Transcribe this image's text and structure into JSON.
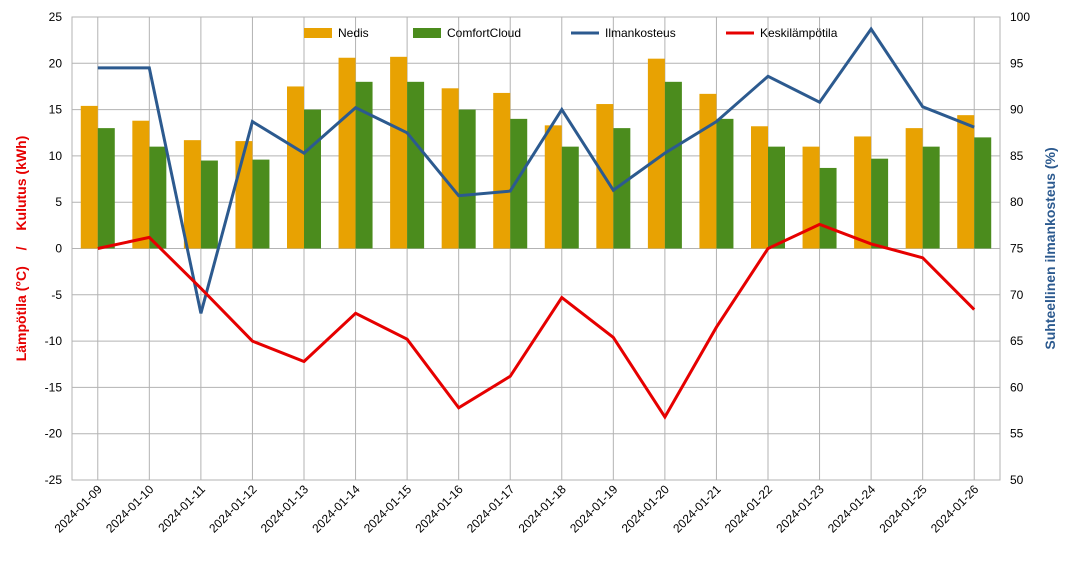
{
  "chart_data": {
    "type": "bar",
    "categories": [
      "2024-01-09",
      "2024-01-10",
      "2024-01-11",
      "2024-01-12",
      "2024-01-13",
      "2024-01-14",
      "2024-01-15",
      "2024-01-16",
      "2024-01-17",
      "2024-01-18",
      "2024-01-19",
      "2024-01-20",
      "2024-01-21",
      "2024-01-22",
      "2024-01-23",
      "2024-01-24",
      "2024-01-25",
      "2024-01-26"
    ],
    "series": [
      {
        "name": "Nedis",
        "type": "bar",
        "axis": "left",
        "color": "#e8a202",
        "values": [
          15.4,
          13.8,
          11.7,
          11.6,
          17.5,
          20.6,
          20.7,
          17.3,
          16.8,
          13.3,
          15.6,
          20.5,
          16.7,
          13.2,
          11.0,
          12.1,
          13.0,
          14.4
        ]
      },
      {
        "name": "ComfortCloud",
        "type": "bar",
        "axis": "left",
        "color": "#4b8c1d",
        "values": [
          13.0,
          11.0,
          9.5,
          9.6,
          15.0,
          18.0,
          18.0,
          15.0,
          14.0,
          11.0,
          13.0,
          18.0,
          14.0,
          11.0,
          8.7,
          9.7,
          11.0,
          12.0
        ]
      },
      {
        "name": "Ilmankosteus",
        "type": "line",
        "axis": "right",
        "color": "#2c5a8f",
        "values": [
          94.5,
          94.5,
          68.0,
          88.7,
          85.3,
          90.2,
          87.5,
          80.7,
          81.2,
          90.0,
          81.3,
          85.3,
          88.7,
          93.6,
          90.8,
          98.7,
          90.3,
          88.1
        ]
      },
      {
        "name": "Keskilämpötila",
        "type": "line",
        "axis": "left",
        "color": "#e60000",
        "values": [
          0.0,
          1.2,
          -4.3,
          -10.0,
          -12.2,
          -7.0,
          -9.8,
          -17.2,
          -13.8,
          -5.3,
          -9.6,
          -18.2,
          -8.5,
          0.0,
          2.6,
          0.5,
          -1.0,
          -6.6
        ]
      }
    ],
    "y_left": {
      "label_red": "Lämpötila (°C)",
      "separator": "/",
      "label_red2": "Kulutus (kWh)",
      "ylim": [
        -25,
        25
      ],
      "ticks": [
        25,
        20,
        15,
        10,
        5,
        0,
        -5,
        -10,
        -15,
        -20,
        -25
      ],
      "label_color": "#e60000"
    },
    "y_right": {
      "label": "Suhteellinen ilmankosteus (%)",
      "ylim": [
        50,
        100
      ],
      "ticks": [
        100,
        95,
        90,
        85,
        80,
        75,
        70,
        65,
        60,
        55,
        50
      ],
      "label_color": "#2c5a8f"
    },
    "grid": true,
    "legend_position": "top"
  }
}
